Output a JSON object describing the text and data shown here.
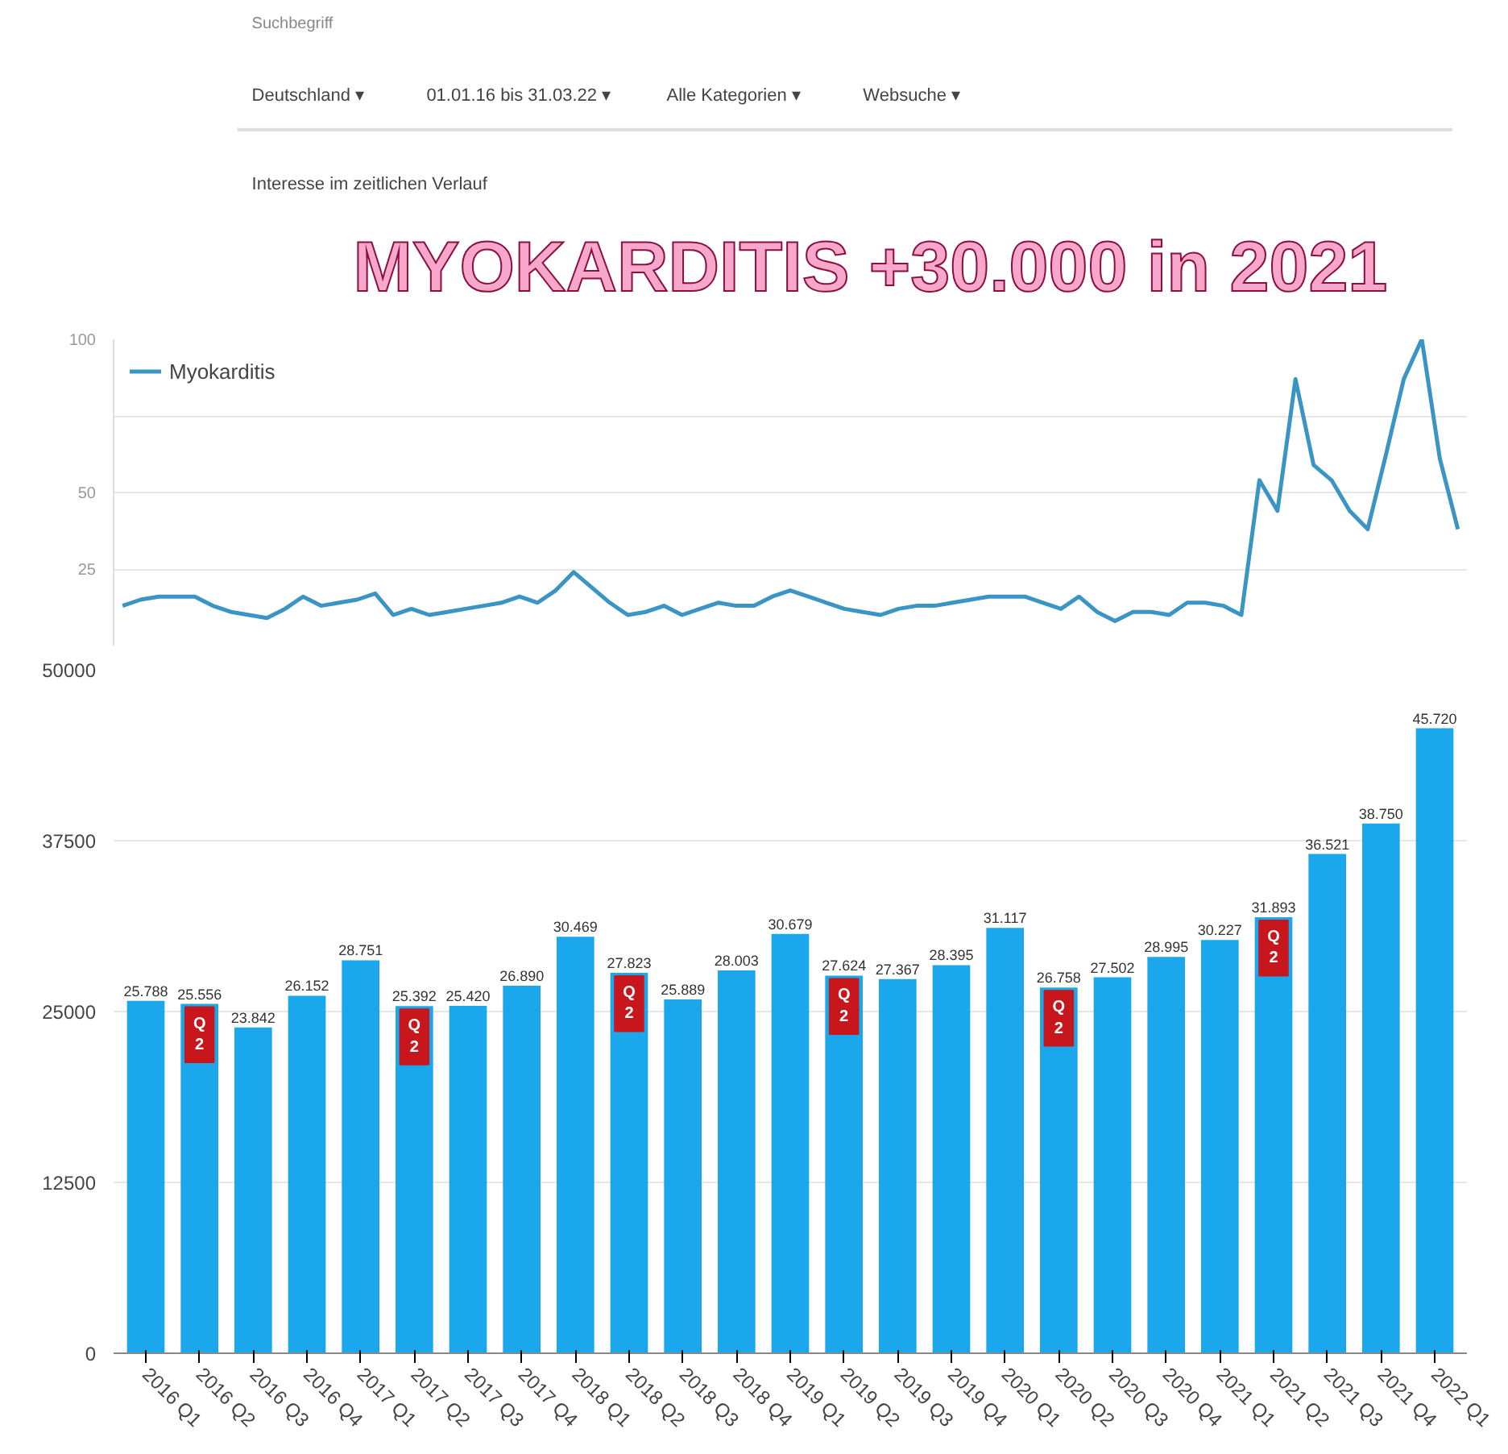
{
  "chart_data": [
    {
      "type": "line",
      "title": "MYOKARDITIS +30.000 in 2021",
      "annotations": [
        "Suchbegriff",
        "Deutschland ▾",
        "01.01.16 bis 31.03.22 ▾",
        "Alle Kategorien ▾",
        "Websuche ▾",
        "Interesse im zeitlichen Verlauf"
      ],
      "categories": [
        null,
        null,
        null,
        null,
        null,
        null,
        null,
        null,
        null,
        null,
        null,
        null,
        null,
        null,
        null,
        null,
        null,
        null,
        null,
        null,
        null,
        null,
        null,
        null,
        null,
        null,
        null,
        null,
        null,
        null,
        null,
        null,
        null,
        null,
        null,
        null,
        null,
        null,
        null,
        null,
        null,
        null,
        null,
        null,
        null,
        null,
        null,
        null,
        null,
        null,
        null,
        null,
        null,
        null,
        null,
        null,
        null,
        null,
        null,
        null,
        null,
        null,
        null,
        null,
        null,
        null,
        null,
        null,
        null,
        null,
        null,
        null,
        null,
        null,
        null
      ],
      "series": [
        {
          "name": "Myokarditis",
          "color": "#3b95c4",
          "values": [
            13,
            15,
            16,
            16,
            16,
            13,
            11,
            10,
            9,
            12,
            16,
            13,
            14,
            15,
            17,
            10,
            12,
            10,
            11,
            12,
            13,
            14,
            16,
            14,
            18,
            24,
            19,
            14,
            10,
            11,
            13,
            10,
            12,
            14,
            13,
            13,
            16,
            18,
            16,
            14,
            12,
            11,
            10,
            12,
            13,
            13,
            14,
            15,
            16,
            16,
            16,
            14,
            12,
            16,
            11,
            8,
            11,
            11,
            10,
            14,
            14,
            13,
            10,
            54,
            44,
            87,
            59,
            54,
            44,
            38,
            62,
            87,
            100,
            61,
            38
          ]
        }
      ],
      "ylim": [
        0,
        100
      ],
      "yticks": [
        {
          "value": 25,
          "label": "25"
        },
        {
          "value": 50,
          "label": "50"
        },
        {
          "value": 75,
          "label": null
        },
        {
          "value": 100,
          "label": "100"
        }
      ],
      "grid": "y",
      "legend": "top left",
      "tick_labels": "y",
      "line_style": "solid"
    },
    {
      "type": "bar",
      "categories": [
        "2016 Q1",
        "2016 Q2",
        "2016 Q3",
        "2016 Q4",
        "2017 Q1",
        "2017 Q2",
        "2017 Q3",
        "2017 Q4",
        "2018 Q1",
        "2018 Q2",
        "2018 Q3",
        "2018 Q4",
        "2019 Q1",
        "2019 Q2",
        "2019 Q3",
        "2019 Q4",
        "2020 Q1",
        "2020 Q2",
        "2020 Q3",
        "2020 Q4",
        "2021 Q1",
        "2021 Q2",
        "2021 Q3",
        "2021 Q4",
        "2022 Q1"
      ],
      "values": [
        25788,
        25556,
        23842,
        26152,
        28751,
        25392,
        25420,
        26890,
        30469,
        27823,
        25889,
        28003,
        30679,
        27624,
        27367,
        28395,
        31117,
        26758,
        27502,
        28995,
        30227,
        31893,
        36521,
        38750,
        45720
      ],
      "value_labels": [
        "25.788",
        "25.556",
        "23.842",
        "26.152",
        "28.751",
        "25.392",
        "25.420",
        "26.890",
        "30.469",
        "27.823",
        "25.889",
        "28.003",
        "30.679",
        "27.624",
        "27.367",
        "28.395",
        "31.117",
        "26.758",
        "27.502",
        "28.995",
        "30.227",
        "31.893",
        "36.521",
        "38.750",
        "45.720"
      ],
      "color": "#1aa7ec",
      "annotations": [
        {
          "text": "Q2",
          "x": "2016 Q2",
          "y": 25556
        },
        {
          "text": "Q2",
          "x": "2017 Q2",
          "y": 25392
        },
        {
          "text": "Q2",
          "x": "2018 Q2",
          "y": 27823
        },
        {
          "text": "Q2",
          "x": "2019 Q2",
          "y": 27624
        },
        {
          "text": "Q2",
          "x": "2020 Q2",
          "y": 26758
        },
        {
          "text": "Q2",
          "x": "2021 Q2",
          "y": 31893
        }
      ],
      "ylim": [
        0,
        50000
      ],
      "yticks": [
        0,
        12500,
        25000,
        37500,
        50000
      ],
      "grid": "y"
    }
  ]
}
